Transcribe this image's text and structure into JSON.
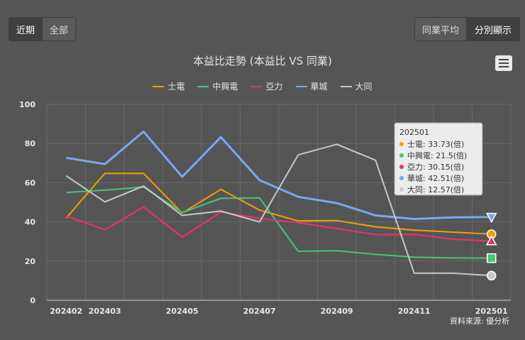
{
  "toolbar": {
    "left": [
      {
        "label": "近期",
        "active": true
      },
      {
        "label": "全部",
        "active": false
      }
    ],
    "right": [
      {
        "label": "同業平均",
        "active": false
      },
      {
        "label": "分別顯示",
        "active": true
      }
    ]
  },
  "source": "資料來源: 優分析",
  "chart_data": {
    "type": "line",
    "title": "本益比走勢 (本益比 VS 同業)",
    "categories": [
      "202402",
      "202403",
      "202404",
      "202405",
      "202406",
      "202407",
      "202408",
      "202409",
      "202410",
      "202411",
      "202412",
      "202501"
    ],
    "tick_labels": [
      "202402",
      "202403",
      "202405",
      "202407",
      "202409",
      "202411",
      "202501"
    ],
    "ylim": [
      0,
      100
    ],
    "yticks": [
      0,
      20,
      40,
      60,
      80,
      100
    ],
    "grid": true,
    "legend_position": "top-center",
    "series": [
      {
        "name": "士電",
        "color": "#f0a000",
        "values": [
          42,
          64.8,
          64.8,
          44.5,
          56.6,
          46,
          40.5,
          40.7,
          37.5,
          35.8,
          34.8,
          33.73
        ]
      },
      {
        "name": "中興電",
        "color": "#4cc27a",
        "values": [
          55,
          56.2,
          57.8,
          44.8,
          52,
          52.3,
          25,
          25.3,
          23.4,
          22,
          21.6,
          21.5
        ]
      },
      {
        "name": "亞力",
        "color": "#e8336b",
        "values": [
          43,
          36,
          47.6,
          32.2,
          45,
          41.7,
          39.6,
          36.6,
          33.5,
          33.6,
          31.2,
          30.15
        ]
      },
      {
        "name": "華城",
        "color": "#7ba6f2",
        "values": [
          72.7,
          69.5,
          86.1,
          63,
          83.3,
          61.3,
          52.8,
          49.6,
          43.3,
          41.5,
          42.3,
          42.51
        ]
      },
      {
        "name": "大同",
        "color": "#c8c8c8",
        "values": [
          63.5,
          50.2,
          58.3,
          43.3,
          45.5,
          40,
          74.2,
          79.6,
          71.5,
          13.8,
          13.8,
          12.57
        ]
      }
    ],
    "tooltip": {
      "header": "202501",
      "rows": [
        "士電: 33.73(倍)",
        "中興電: 21.5(倍)",
        "亞力: 30.15(倍)",
        "華城: 42.51(倍)",
        "大同: 12.57(倍)"
      ]
    }
  }
}
